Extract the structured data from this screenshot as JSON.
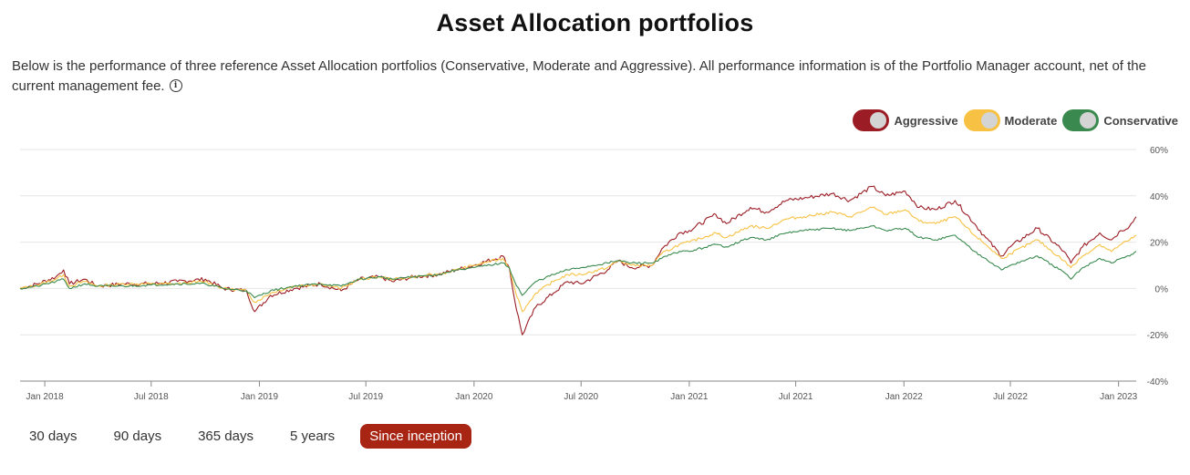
{
  "page": {
    "title": "Asset Allocation portfolios",
    "description": "Below is the performance of three reference Asset Allocation portfolios (Conservative, Moderate and Aggressive). All performance information is of the Portfolio Manager account, net of the current management fee.",
    "info_icon": "info-circle-icon"
  },
  "legend": [
    {
      "label": "Aggressive",
      "color": "#9b1c24"
    },
    {
      "label": "Moderate",
      "color": "#f7c244"
    },
    {
      "label": "Conservative",
      "color": "#3a8a4f"
    }
  ],
  "periods": [
    {
      "label": "30 days",
      "active": false
    },
    {
      "label": "90 days",
      "active": false
    },
    {
      "label": "365 days",
      "active": false
    },
    {
      "label": "5 years",
      "active": false
    },
    {
      "label": "Since inception",
      "active": true
    }
  ],
  "chart_data": {
    "type": "line",
    "title": "",
    "xlabel": "",
    "ylabel": "",
    "xlim": [
      "2017-11-20",
      "2023-01-31"
    ],
    "ylim": [
      -40,
      60
    ],
    "y_ticks": [
      60,
      40,
      20,
      0,
      -20,
      -40
    ],
    "y_tick_labels": [
      "60%",
      "40%",
      "20%",
      "0%",
      "-20%",
      "-40%"
    ],
    "x_ticks": [
      "2018-01-01",
      "2018-07-01",
      "2019-01-01",
      "2019-07-01",
      "2020-01-01",
      "2020-07-01",
      "2021-01-01",
      "2021-07-01",
      "2022-01-01",
      "2022-07-01",
      "2023-01-01"
    ],
    "x_tick_labels": [
      "Jan 2018",
      "Jul 2018",
      "Jan 2019",
      "Jul 2019",
      "Jan 2020",
      "Jul 2020",
      "Jan 2021",
      "Jul 2021",
      "Jan 2022",
      "Jul 2022",
      "Jan 2023"
    ],
    "grid": true,
    "legend_position": "top-right",
    "series": [
      {
        "name": "Aggressive",
        "color": "#9b1c24",
        "points": [
          [
            "2017-11-20",
            0
          ],
          [
            "2017-12-20",
            2
          ],
          [
            "2018-01-20",
            5
          ],
          [
            "2018-02-02",
            8
          ],
          [
            "2018-02-12",
            2
          ],
          [
            "2018-03-10",
            4
          ],
          [
            "2018-04-01",
            1
          ],
          [
            "2018-05-15",
            2
          ],
          [
            "2018-07-01",
            2
          ],
          [
            "2018-08-15",
            3
          ],
          [
            "2018-10-01",
            4
          ],
          [
            "2018-11-01",
            0
          ],
          [
            "2018-12-10",
            -1
          ],
          [
            "2018-12-24",
            -10
          ],
          [
            "2019-01-20",
            -3
          ],
          [
            "2019-03-01",
            0
          ],
          [
            "2019-04-15",
            2
          ],
          [
            "2019-05-20",
            -1
          ],
          [
            "2019-06-20",
            4
          ],
          [
            "2019-07-25",
            5
          ],
          [
            "2019-08-15",
            3
          ],
          [
            "2019-09-20",
            5
          ],
          [
            "2019-11-01",
            6
          ],
          [
            "2019-12-01",
            8
          ],
          [
            "2020-01-01",
            10
          ],
          [
            "2020-02-19",
            14
          ],
          [
            "2020-03-01",
            9
          ],
          [
            "2020-03-10",
            -5
          ],
          [
            "2020-03-23",
            -20
          ],
          [
            "2020-04-15",
            -8
          ],
          [
            "2020-05-15",
            -2
          ],
          [
            "2020-06-08",
            3
          ],
          [
            "2020-07-01",
            2
          ],
          [
            "2020-08-15",
            8
          ],
          [
            "2020-09-02",
            12
          ],
          [
            "2020-09-25",
            9
          ],
          [
            "2020-10-30",
            10
          ],
          [
            "2020-11-15",
            17
          ],
          [
            "2020-12-15",
            24
          ],
          [
            "2021-01-01",
            25
          ],
          [
            "2021-02-15",
            32
          ],
          [
            "2021-03-05",
            28
          ],
          [
            "2021-04-15",
            35
          ],
          [
            "2021-05-12",
            33
          ],
          [
            "2021-06-15",
            38
          ],
          [
            "2021-07-15",
            39
          ],
          [
            "2021-09-01",
            41
          ],
          [
            "2021-10-01",
            38
          ],
          [
            "2021-11-08",
            44
          ],
          [
            "2021-12-01",
            40
          ],
          [
            "2022-01-03",
            42
          ],
          [
            "2022-01-27",
            35
          ],
          [
            "2022-02-24",
            34
          ],
          [
            "2022-03-29",
            38
          ],
          [
            "2022-05-01",
            28
          ],
          [
            "2022-05-20",
            22
          ],
          [
            "2022-06-16",
            14
          ],
          [
            "2022-07-01",
            18
          ],
          [
            "2022-08-16",
            26
          ],
          [
            "2022-09-30",
            16
          ],
          [
            "2022-10-12",
            11
          ],
          [
            "2022-11-01",
            18
          ],
          [
            "2022-11-30",
            24
          ],
          [
            "2022-12-20",
            21
          ],
          [
            "2023-01-05",
            25
          ],
          [
            "2023-01-20",
            27
          ],
          [
            "2023-01-31",
            31
          ]
        ]
      },
      {
        "name": "Moderate",
        "color": "#f7c244",
        "points": [
          [
            "2017-11-20",
            0
          ],
          [
            "2017-12-20",
            1.5
          ],
          [
            "2018-01-20",
            4
          ],
          [
            "2018-02-02",
            6
          ],
          [
            "2018-02-12",
            1
          ],
          [
            "2018-03-10",
            3
          ],
          [
            "2018-04-01",
            1
          ],
          [
            "2018-05-15",
            2
          ],
          [
            "2018-07-01",
            2
          ],
          [
            "2018-08-15",
            2
          ],
          [
            "2018-10-01",
            3
          ],
          [
            "2018-11-01",
            0
          ],
          [
            "2018-12-10",
            -1
          ],
          [
            "2018-12-24",
            -6
          ],
          [
            "2019-01-20",
            -2
          ],
          [
            "2019-03-01",
            1
          ],
          [
            "2019-04-15",
            2
          ],
          [
            "2019-05-20",
            0
          ],
          [
            "2019-06-20",
            4
          ],
          [
            "2019-07-25",
            5
          ],
          [
            "2019-08-15",
            4
          ],
          [
            "2019-09-20",
            5
          ],
          [
            "2019-11-01",
            6
          ],
          [
            "2019-12-01",
            8
          ],
          [
            "2020-01-01",
            10
          ],
          [
            "2020-02-19",
            13
          ],
          [
            "2020-03-01",
            9
          ],
          [
            "2020-03-10",
            0
          ],
          [
            "2020-03-23",
            -10
          ],
          [
            "2020-04-15",
            -2
          ],
          [
            "2020-05-15",
            3
          ],
          [
            "2020-06-08",
            6
          ],
          [
            "2020-07-01",
            6
          ],
          [
            "2020-08-15",
            9
          ],
          [
            "2020-09-02",
            12
          ],
          [
            "2020-09-25",
            10
          ],
          [
            "2020-10-30",
            10
          ],
          [
            "2020-11-15",
            15
          ],
          [
            "2020-12-15",
            19
          ],
          [
            "2021-01-01",
            20
          ],
          [
            "2021-02-15",
            24
          ],
          [
            "2021-03-05",
            22
          ],
          [
            "2021-04-15",
            27
          ],
          [
            "2021-05-12",
            26
          ],
          [
            "2021-06-15",
            30
          ],
          [
            "2021-07-15",
            31
          ],
          [
            "2021-09-01",
            33
          ],
          [
            "2021-10-01",
            31
          ],
          [
            "2021-11-08",
            35
          ],
          [
            "2021-12-01",
            32
          ],
          [
            "2022-01-03",
            34
          ],
          [
            "2022-01-27",
            29
          ],
          [
            "2022-02-24",
            28
          ],
          [
            "2022-03-29",
            31
          ],
          [
            "2022-05-01",
            23
          ],
          [
            "2022-05-20",
            19
          ],
          [
            "2022-06-16",
            13
          ],
          [
            "2022-07-01",
            15
          ],
          [
            "2022-08-16",
            21
          ],
          [
            "2022-09-30",
            12
          ],
          [
            "2022-10-12",
            9
          ],
          [
            "2022-11-01",
            14
          ],
          [
            "2022-11-30",
            19
          ],
          [
            "2022-12-20",
            16
          ],
          [
            "2023-01-05",
            19
          ],
          [
            "2023-01-20",
            21
          ],
          [
            "2023-01-31",
            23
          ]
        ]
      },
      {
        "name": "Conservative",
        "color": "#3a8a4f",
        "points": [
          [
            "2017-11-20",
            0
          ],
          [
            "2017-12-20",
            1
          ],
          [
            "2018-01-20",
            3
          ],
          [
            "2018-02-02",
            4
          ],
          [
            "2018-02-12",
            0
          ],
          [
            "2018-03-10",
            2
          ],
          [
            "2018-04-01",
            1
          ],
          [
            "2018-05-15",
            1
          ],
          [
            "2018-07-01",
            1.5
          ],
          [
            "2018-08-15",
            2
          ],
          [
            "2018-10-01",
            2
          ],
          [
            "2018-11-01",
            0
          ],
          [
            "2018-12-10",
            -1
          ],
          [
            "2018-12-24",
            -4
          ],
          [
            "2019-01-20",
            -1
          ],
          [
            "2019-03-01",
            1
          ],
          [
            "2019-04-15",
            2
          ],
          [
            "2019-05-20",
            1
          ],
          [
            "2019-06-20",
            4
          ],
          [
            "2019-07-25",
            5
          ],
          [
            "2019-08-15",
            4
          ],
          [
            "2019-09-20",
            5
          ],
          [
            "2019-11-01",
            6
          ],
          [
            "2019-12-01",
            8
          ],
          [
            "2020-01-01",
            9
          ],
          [
            "2020-02-19",
            11
          ],
          [
            "2020-03-01",
            9
          ],
          [
            "2020-03-10",
            3
          ],
          [
            "2020-03-23",
            -3
          ],
          [
            "2020-04-15",
            3
          ],
          [
            "2020-05-15",
            6
          ],
          [
            "2020-06-08",
            8
          ],
          [
            "2020-07-01",
            9
          ],
          [
            "2020-08-15",
            11
          ],
          [
            "2020-09-02",
            12
          ],
          [
            "2020-09-25",
            11
          ],
          [
            "2020-10-30",
            11
          ],
          [
            "2020-11-15",
            13
          ],
          [
            "2020-12-15",
            16
          ],
          [
            "2021-01-01",
            16
          ],
          [
            "2021-02-15",
            19
          ],
          [
            "2021-03-05",
            18
          ],
          [
            "2021-04-15",
            22
          ],
          [
            "2021-05-12",
            21
          ],
          [
            "2021-06-15",
            24
          ],
          [
            "2021-07-15",
            25
          ],
          [
            "2021-09-01",
            26
          ],
          [
            "2021-10-01",
            25
          ],
          [
            "2021-11-08",
            27
          ],
          [
            "2021-12-01",
            25
          ],
          [
            "2022-01-03",
            26
          ],
          [
            "2022-01-27",
            22
          ],
          [
            "2022-02-24",
            21
          ],
          [
            "2022-03-29",
            23
          ],
          [
            "2022-05-01",
            16
          ],
          [
            "2022-05-20",
            13
          ],
          [
            "2022-06-16",
            8
          ],
          [
            "2022-07-01",
            10
          ],
          [
            "2022-08-16",
            14
          ],
          [
            "2022-09-30",
            7
          ],
          [
            "2022-10-12",
            4
          ],
          [
            "2022-11-01",
            9
          ],
          [
            "2022-11-30",
            13
          ],
          [
            "2022-12-20",
            11
          ],
          [
            "2023-01-05",
            13
          ],
          [
            "2023-01-20",
            14
          ],
          [
            "2023-01-31",
            16
          ]
        ]
      }
    ]
  }
}
